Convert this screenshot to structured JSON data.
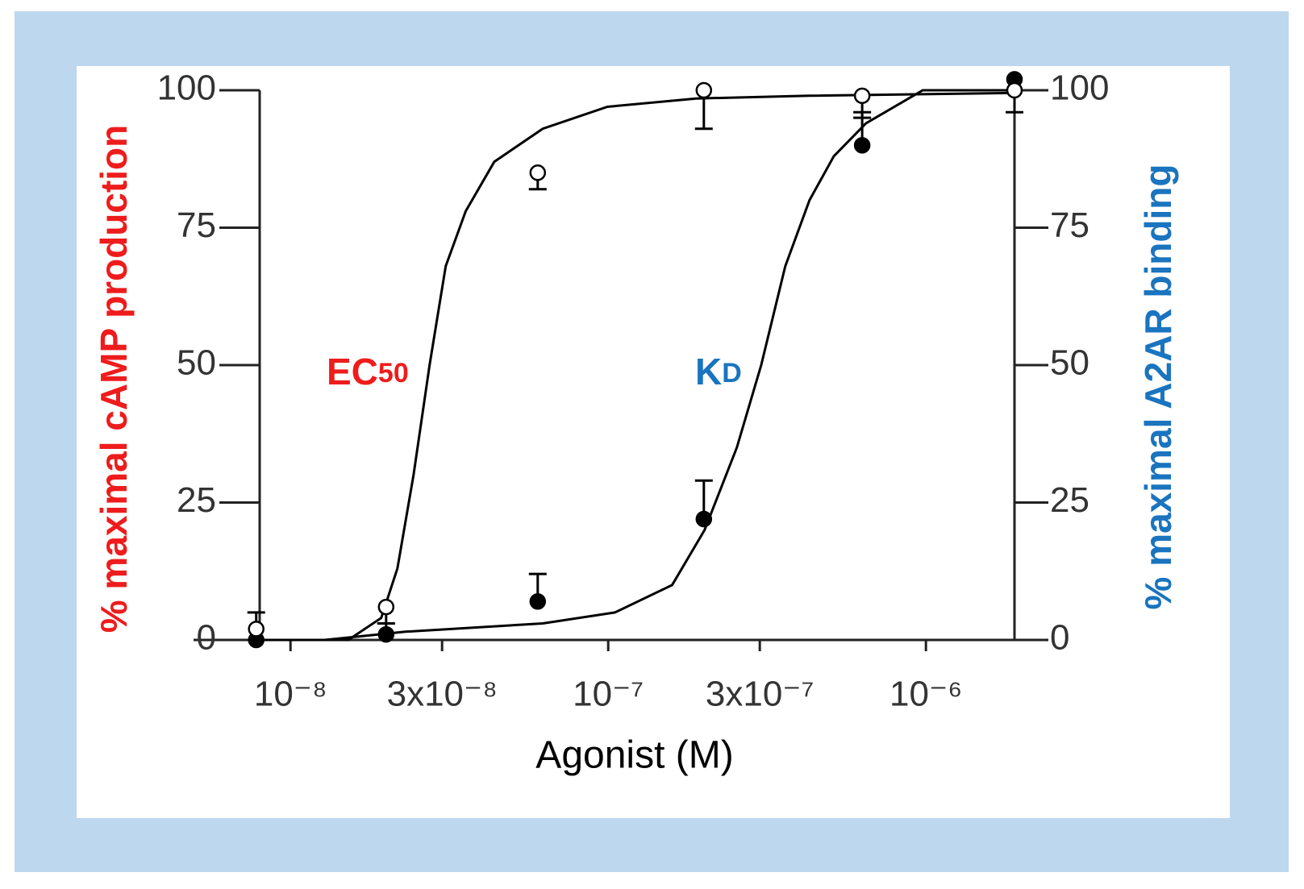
{
  "chart_data": {
    "type": "scatter",
    "xlabel": "Agonist (M)",
    "ylabel": "% maximal cAMP production",
    "y2label": "% maximal A2AR binding",
    "ylabel_color": "#ee1c1c",
    "y2label_color": "#1a74bf",
    "xscale": "log",
    "xlim": [
      7.5e-09,
      1.9e-06
    ],
    "xticks": [
      {
        "value": 1e-08,
        "label": "10⁻⁸"
      },
      {
        "value": 3e-08,
        "label": "3x10⁻⁸"
      },
      {
        "value": 1e-07,
        "label": "10⁻⁷"
      },
      {
        "value": 3e-07,
        "label": "3x10⁻⁷"
      },
      {
        "value": 1e-06,
        "label": "10⁻⁶"
      }
    ],
    "ylim": [
      0,
      100
    ],
    "yticks": [
      0,
      25,
      50,
      75,
      100
    ],
    "y2lim": [
      0,
      100
    ],
    "y2ticks": [
      0,
      25,
      50,
      75,
      100
    ],
    "series": [
      {
        "marker": "open",
        "color": "#000000",
        "axis": "y",
        "x": [
          7.8e-09,
          2e-08,
          6e-08,
          2e-07,
          6.3e-07,
          1.9e-06
        ],
        "values": [
          2,
          6,
          85,
          100,
          99,
          100
        ],
        "errors": [
          3,
          3,
          3,
          7,
          4,
          4
        ],
        "error_direction": "down-first-up"
      },
      {
        "marker": "filled",
        "color": "#000000",
        "axis": "y2",
        "x": [
          7.8e-09,
          2e-08,
          6e-08,
          2e-07,
          6.3e-07,
          1.9e-06
        ],
        "values": [
          0,
          1,
          7,
          22,
          90,
          102
        ],
        "errors": [
          0,
          2,
          5,
          7,
          6,
          0
        ],
        "error_direction": "up"
      }
    ],
    "curves": [
      {
        "axis": "y",
        "color": "#000000",
        "x": [
          8e-09,
          1.52e-08,
          1.93e-08,
          2.17e-08,
          2.44e-08,
          2.74e-08,
          3.08e-08,
          3.56e-08,
          4.38e-08,
          6.22e-08,
          9.94e-08,
          1.89e-07,
          4.3e-07,
          1.86e-06
        ],
        "values": [
          0,
          0,
          4,
          13,
          30,
          50,
          68,
          78,
          87,
          93,
          97,
          98.5,
          99,
          99.5
        ]
      },
      {
        "axis": "y2",
        "color": "#000000",
        "x": [
          1.28e-08,
          2.3e-08,
          6.22e-08,
          1.05e-07,
          1.59e-07,
          2.01e-07,
          2.54e-07,
          3.03e-07,
          3.61e-07,
          4.3e-07,
          5.13e-07,
          6.48e-07,
          9.77e-07,
          1.86e-06
        ],
        "values": [
          0,
          1.5,
          3,
          5,
          10,
          20,
          35,
          50,
          68,
          80,
          88,
          94,
          100,
          100
        ]
      }
    ],
    "annotations": [
      {
        "text": "EC",
        "sub": "50",
        "color": "#ee1c1c"
      },
      {
        "text": "K",
        "sub": "D",
        "color": "#1a74bf"
      }
    ]
  }
}
